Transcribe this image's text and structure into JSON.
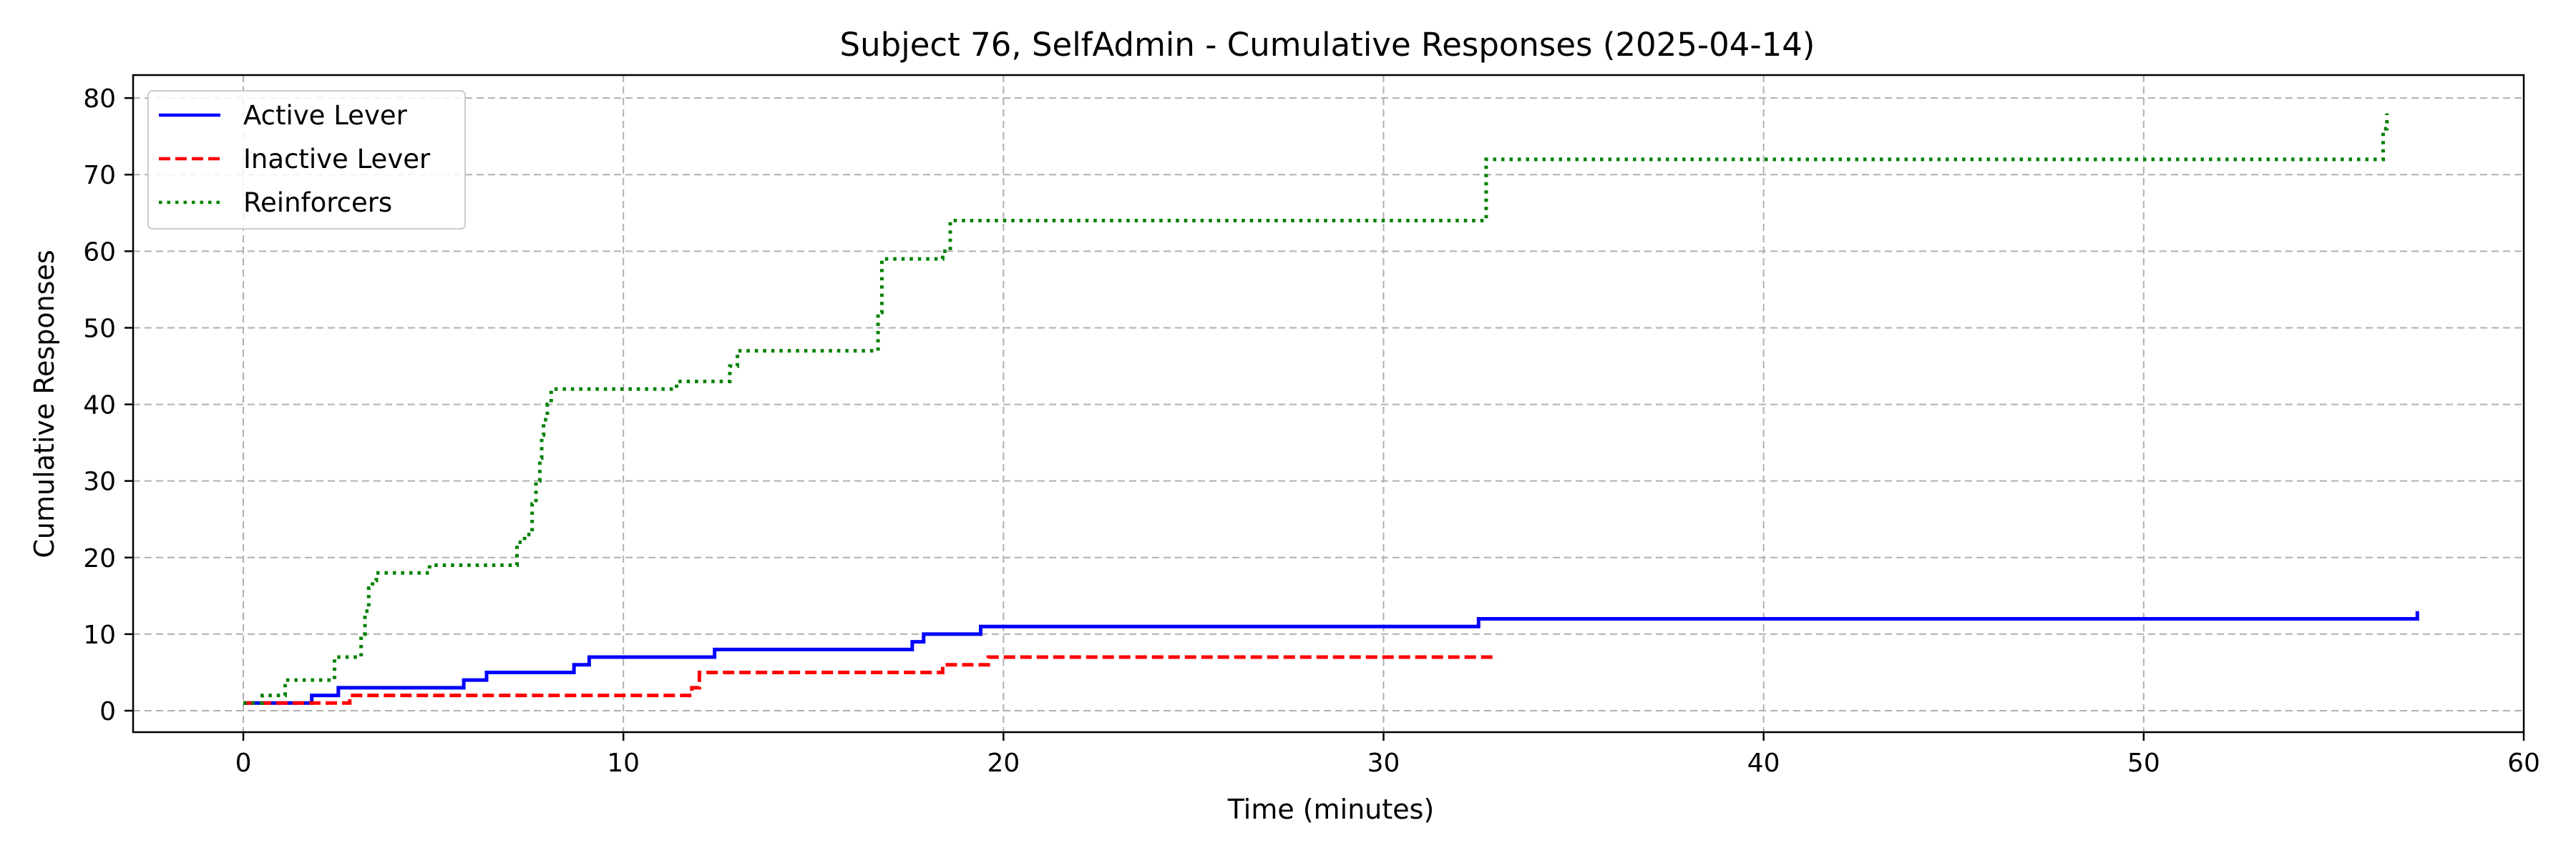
{
  "chart_data": {
    "type": "line",
    "title": "Subject 76, SelfAdmin - Cumulative Responses (2025-04-14)",
    "xlabel": "Time (minutes)",
    "ylabel": "Cumulative Responses",
    "xlim": [
      -2.9,
      60
    ],
    "ylim": [
      -2.8,
      83
    ],
    "xticks": [
      0,
      10,
      20,
      30,
      40,
      50,
      60
    ],
    "yticks": [
      0,
      10,
      20,
      30,
      40,
      50,
      60,
      70,
      80
    ],
    "grid": true,
    "legend_position": "top-left",
    "series": [
      {
        "name": "Active Lever",
        "color": "#0000ff",
        "style": "solid",
        "x": [
          0,
          1.8,
          2.5,
          5.8,
          6.4,
          8.7,
          9.1,
          12.4,
          17.6,
          17.9,
          19.4,
          32.5,
          57.2
        ],
        "y": [
          1,
          2,
          3,
          4,
          5,
          6,
          7,
          8,
          9,
          10,
          11,
          12,
          13
        ]
      },
      {
        "name": "Inactive Lever",
        "color": "#ff0000",
        "style": "dashed",
        "x": [
          0,
          2.8,
          11.8,
          12.0,
          18.4,
          19.6,
          33.0
        ],
        "y": [
          1,
          2,
          3,
          5,
          6,
          7,
          7
        ]
      },
      {
        "name": "Reinforcers",
        "color": "#008000",
        "style": "dotted",
        "x": [
          0,
          0.5,
          1.1,
          2.4,
          3.1,
          3.2,
          3.3,
          3.4,
          3.5,
          4.9,
          7.2,
          7.4,
          7.6,
          7.7,
          7.8,
          7.85,
          7.9,
          8.0,
          8.1,
          11.2,
          11.4,
          12.8,
          13.0,
          16.6,
          16.7,
          16.8,
          18.4,
          18.6,
          32.5,
          32.7,
          56.1,
          56.3,
          56.4
        ],
        "y": [
          1,
          2,
          4,
          7,
          10,
          13,
          16,
          17,
          18,
          19,
          22,
          23,
          27,
          30,
          33,
          36,
          38,
          40,
          42,
          42,
          43,
          45,
          47,
          47,
          52,
          59,
          60,
          64,
          64,
          72,
          72,
          76,
          78
        ]
      }
    ]
  }
}
